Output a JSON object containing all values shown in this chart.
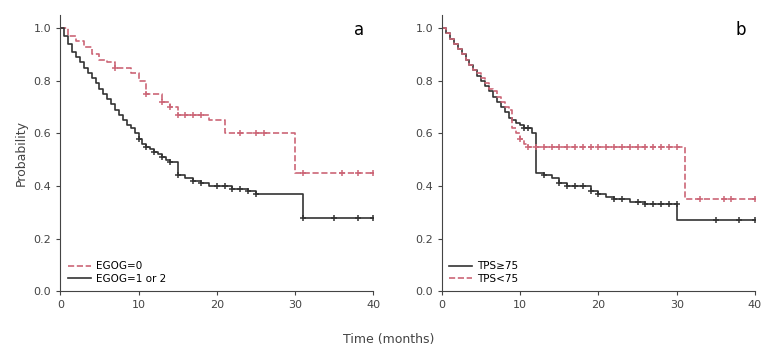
{
  "panel_a": {
    "egog0": {
      "times": [
        0,
        1,
        2,
        3,
        4,
        5,
        6,
        7,
        8,
        9,
        10,
        11,
        12,
        13,
        14,
        15,
        16,
        17,
        18,
        19,
        20,
        21,
        22,
        23,
        24,
        25,
        26,
        27,
        28,
        29,
        30,
        31,
        32,
        40
      ],
      "surv": [
        1.0,
        0.97,
        0.95,
        0.93,
        0.9,
        0.88,
        0.87,
        0.85,
        0.85,
        0.83,
        0.8,
        0.75,
        0.75,
        0.72,
        0.7,
        0.67,
        0.67,
        0.67,
        0.67,
        0.65,
        0.65,
        0.6,
        0.6,
        0.6,
        0.6,
        0.6,
        0.6,
        0.6,
        0.6,
        0.6,
        0.45,
        0.45,
        0.45,
        0.45
      ],
      "censors_x": [
        7,
        11,
        13,
        14,
        15,
        16,
        17,
        18,
        23,
        25,
        26,
        31,
        36,
        38,
        40
      ],
      "censors_y": [
        0.85,
        0.75,
        0.72,
        0.7,
        0.67,
        0.67,
        0.67,
        0.67,
        0.6,
        0.6,
        0.6,
        0.45,
        0.45,
        0.45,
        0.45
      ],
      "color": "#cc6677",
      "linestyle": "dashed",
      "label": "EGOG=0"
    },
    "egog12": {
      "times": [
        0,
        0.5,
        1,
        1.5,
        2,
        2.5,
        3,
        3.5,
        4,
        4.5,
        5,
        5.5,
        6,
        6.5,
        7,
        7.5,
        8,
        8.5,
        9,
        9.5,
        10,
        10.5,
        11,
        11.5,
        12,
        12.5,
        13,
        13.5,
        14,
        15,
        16,
        17,
        18,
        19,
        20,
        21,
        22,
        23,
        24,
        25,
        26,
        27,
        28,
        29,
        30,
        31,
        40
      ],
      "surv": [
        1.0,
        0.97,
        0.94,
        0.91,
        0.89,
        0.87,
        0.85,
        0.83,
        0.81,
        0.79,
        0.77,
        0.75,
        0.73,
        0.71,
        0.69,
        0.67,
        0.65,
        0.63,
        0.62,
        0.6,
        0.58,
        0.56,
        0.55,
        0.54,
        0.53,
        0.52,
        0.51,
        0.5,
        0.49,
        0.44,
        0.43,
        0.42,
        0.41,
        0.4,
        0.4,
        0.4,
        0.39,
        0.39,
        0.38,
        0.37,
        0.37,
        0.37,
        0.37,
        0.37,
        0.37,
        0.28,
        0.28
      ],
      "censors_x": [
        10,
        11,
        12,
        13,
        14,
        15,
        17,
        18,
        20,
        21,
        22,
        23,
        24,
        25,
        31,
        35,
        38,
        40
      ],
      "censors_y": [
        0.58,
        0.55,
        0.53,
        0.51,
        0.49,
        0.44,
        0.42,
        0.41,
        0.4,
        0.4,
        0.39,
        0.39,
        0.38,
        0.37,
        0.28,
        0.28,
        0.28,
        0.28
      ],
      "color": "#333333",
      "linestyle": "solid",
      "label": "EGOG=1 or 2"
    }
  },
  "panel_b": {
    "tps_ge75": {
      "times": [
        0,
        0.5,
        1,
        1.5,
        2,
        2.5,
        3,
        3.5,
        4,
        4.5,
        5,
        5.5,
        6,
        6.5,
        7,
        7.5,
        8,
        8.5,
        9,
        9.5,
        10,
        10.5,
        11,
        11.5,
        12,
        13,
        14,
        15,
        16,
        17,
        18,
        19,
        20,
        21,
        22,
        23,
        24,
        25,
        26,
        27,
        28,
        29,
        30,
        31,
        40
      ],
      "surv": [
        1.0,
        0.98,
        0.96,
        0.94,
        0.92,
        0.9,
        0.88,
        0.86,
        0.84,
        0.82,
        0.8,
        0.78,
        0.76,
        0.74,
        0.72,
        0.7,
        0.68,
        0.66,
        0.65,
        0.64,
        0.63,
        0.62,
        0.62,
        0.6,
        0.45,
        0.44,
        0.43,
        0.41,
        0.4,
        0.4,
        0.4,
        0.38,
        0.37,
        0.36,
        0.35,
        0.35,
        0.34,
        0.34,
        0.33,
        0.33,
        0.33,
        0.33,
        0.27,
        0.27,
        0.27
      ],
      "censors_x": [
        10.5,
        11,
        13,
        15,
        16,
        17,
        18,
        19,
        20,
        22,
        23,
        25,
        26,
        27,
        28,
        29,
        30,
        35,
        38,
        40
      ],
      "censors_y": [
        0.62,
        0.62,
        0.44,
        0.41,
        0.4,
        0.4,
        0.4,
        0.38,
        0.37,
        0.35,
        0.35,
        0.34,
        0.33,
        0.33,
        0.33,
        0.33,
        0.33,
        0.27,
        0.27,
        0.27
      ],
      "color": "#333333",
      "linestyle": "solid",
      "label": "TPS≥75"
    },
    "tps_lt75": {
      "times": [
        0,
        0.5,
        1,
        1.5,
        2,
        2.5,
        3,
        3.5,
        4,
        4.5,
        5,
        5.5,
        6,
        6.5,
        7,
        7.5,
        8,
        8.5,
        9,
        9.5,
        10,
        10.5,
        11,
        12,
        13,
        14,
        15,
        16,
        17,
        18,
        19,
        20,
        21,
        22,
        23,
        24,
        25,
        26,
        27,
        28,
        29,
        30,
        31,
        32,
        33,
        40
      ],
      "surv": [
        1.0,
        0.98,
        0.96,
        0.94,
        0.92,
        0.9,
        0.88,
        0.86,
        0.84,
        0.83,
        0.81,
        0.79,
        0.77,
        0.76,
        0.74,
        0.72,
        0.7,
        0.69,
        0.62,
        0.6,
        0.58,
        0.56,
        0.55,
        0.55,
        0.55,
        0.55,
        0.55,
        0.55,
        0.55,
        0.55,
        0.55,
        0.55,
        0.55,
        0.55,
        0.55,
        0.55,
        0.55,
        0.55,
        0.55,
        0.55,
        0.55,
        0.55,
        0.35,
        0.35,
        0.35,
        0.35
      ],
      "censors_x": [
        10,
        11,
        12,
        13,
        14,
        15,
        16,
        17,
        18,
        19,
        20,
        21,
        22,
        23,
        24,
        25,
        26,
        27,
        28,
        29,
        30,
        33,
        36,
        37,
        40
      ],
      "censors_y": [
        0.58,
        0.55,
        0.55,
        0.55,
        0.55,
        0.55,
        0.55,
        0.55,
        0.55,
        0.55,
        0.55,
        0.55,
        0.55,
        0.55,
        0.55,
        0.55,
        0.55,
        0.55,
        0.55,
        0.55,
        0.55,
        0.35,
        0.35,
        0.35,
        0.35
      ],
      "color": "#cc6677",
      "linestyle": "dashed",
      "label": "TPS<75"
    }
  },
  "xlim": [
    0,
    40
  ],
  "ylim": [
    0.0,
    1.05
  ],
  "xticks": [
    0,
    10,
    20,
    30,
    40
  ],
  "yticks": [
    0.0,
    0.2,
    0.4,
    0.6,
    0.8,
    1.0
  ],
  "xlabel": "Time (months)",
  "ylabel": "Probability",
  "bg_color": "#ffffff",
  "axis_color": "#444444",
  "tick_color": "#444444"
}
